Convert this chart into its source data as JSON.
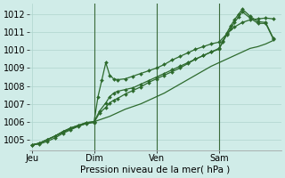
{
  "background_color": "#d0ece8",
  "grid_color": "#b0d4ce",
  "line_color": "#2d6a2d",
  "marker_color": "#2d6a2d",
  "xlabel": "Pression niveau de la mer( hPa )",
  "ylim": [
    1004.4,
    1012.6
  ],
  "yticks": [
    1005,
    1006,
    1007,
    1008,
    1009,
    1010,
    1011,
    1012
  ],
  "xtick_labels": [
    "Jeu",
    "Dim",
    "Ven",
    "Sam"
  ],
  "xtick_positions": [
    0,
    8,
    16,
    24
  ],
  "vline_positions": [
    8,
    16,
    24
  ],
  "xlim": [
    -0.3,
    32
  ],
  "series": [
    {
      "x": [
        0,
        0.5,
        1,
        2,
        3,
        4,
        5,
        6,
        7,
        8,
        9,
        10,
        11,
        12,
        13,
        14,
        15,
        16,
        17,
        18,
        19,
        20,
        21,
        22,
        23,
        24,
        25,
        26,
        27,
        28,
        29,
        30,
        31
      ],
      "y": [
        1004.7,
        1004.75,
        1004.8,
        1005.0,
        1005.2,
        1005.4,
        1005.6,
        1005.75,
        1005.9,
        1006.0,
        1006.15,
        1006.3,
        1006.5,
        1006.7,
        1006.85,
        1007.0,
        1007.2,
        1007.4,
        1007.6,
        1007.85,
        1008.1,
        1008.35,
        1008.6,
        1008.85,
        1009.1,
        1009.3,
        1009.5,
        1009.7,
        1009.9,
        1010.1,
        1010.2,
        1010.35,
        1010.55
      ],
      "has_markers": false
    },
    {
      "x": [
        0,
        1,
        2,
        3,
        4,
        5,
        6,
        7,
        8,
        8.5,
        9,
        9.5,
        10,
        10.5,
        11,
        12,
        13,
        14,
        15,
        16,
        17,
        18,
        19,
        20,
        21,
        22,
        23,
        24,
        25,
        26,
        27,
        28,
        29,
        30,
        31
      ],
      "y": [
        1004.7,
        1004.8,
        1005.0,
        1005.2,
        1005.45,
        1005.65,
        1005.8,
        1005.95,
        1006.0,
        1007.4,
        1008.35,
        1009.3,
        1008.6,
        1008.4,
        1008.35,
        1008.4,
        1008.55,
        1008.7,
        1008.85,
        1009.0,
        1009.2,
        1009.45,
        1009.65,
        1009.85,
        1010.05,
        1010.2,
        1010.35,
        1010.45,
        1010.9,
        1011.3,
        1011.55,
        1011.7,
        1011.75,
        1011.8,
        1011.75
      ],
      "has_markers": true
    },
    {
      "x": [
        0,
        1,
        2,
        3,
        4,
        5,
        6,
        7,
        8,
        8.7,
        9.5,
        10,
        10.5,
        11,
        12,
        13,
        14,
        15,
        16,
        17,
        18,
        19,
        20,
        21,
        22,
        23,
        24,
        24.5,
        25,
        25.5,
        26,
        26.5,
        27,
        28,
        29,
        30,
        31
      ],
      "y": [
        1004.7,
        1004.8,
        1005.0,
        1005.2,
        1005.45,
        1005.65,
        1005.8,
        1005.95,
        1006.0,
        1006.6,
        1007.05,
        1007.4,
        1007.6,
        1007.7,
        1007.8,
        1007.9,
        1008.1,
        1008.3,
        1008.5,
        1008.7,
        1008.9,
        1009.1,
        1009.3,
        1009.5,
        1009.7,
        1009.9,
        1010.1,
        1010.5,
        1010.95,
        1011.35,
        1011.7,
        1012.0,
        1012.3,
        1011.9,
        1011.6,
        1011.55,
        1010.65
      ],
      "has_markers": true
    },
    {
      "x": [
        0,
        1,
        2,
        3,
        4,
        5,
        6,
        7,
        8,
        8.7,
        9.5,
        10,
        10.5,
        11,
        12,
        13,
        14,
        15,
        16,
        17,
        18,
        19,
        20,
        21,
        22,
        23,
        24,
        24.5,
        25,
        25.5,
        26,
        26.5,
        27,
        28,
        29,
        30,
        31
      ],
      "y": [
        1004.7,
        1004.75,
        1004.9,
        1005.1,
        1005.35,
        1005.55,
        1005.75,
        1005.9,
        1005.95,
        1006.5,
        1006.8,
        1007.05,
        1007.2,
        1007.3,
        1007.55,
        1007.75,
        1007.95,
        1008.2,
        1008.4,
        1008.6,
        1008.8,
        1009.0,
        1009.25,
        1009.5,
        1009.7,
        1009.9,
        1010.05,
        1010.45,
        1010.85,
        1011.2,
        1011.55,
        1011.85,
        1012.15,
        1011.8,
        1011.5,
        1011.5,
        1010.6
      ],
      "has_markers": true
    }
  ]
}
